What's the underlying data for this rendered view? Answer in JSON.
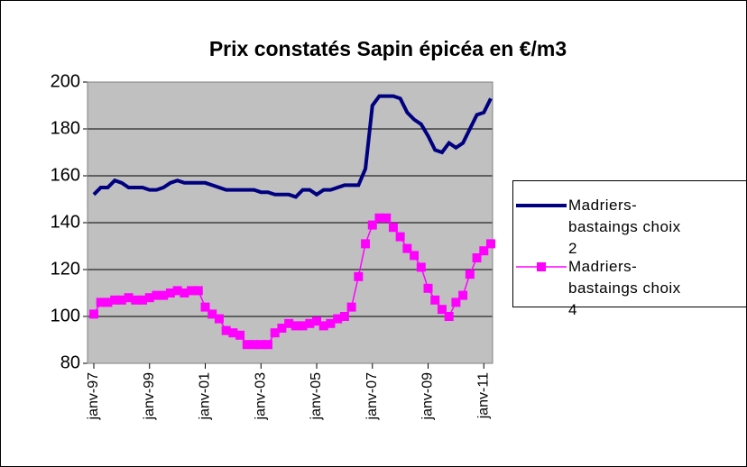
{
  "chart_data": {
    "type": "line",
    "title": "Prix constatés Sapin épicéa en €/m3",
    "categories": [
      "janv-97",
      null,
      null,
      null,
      null,
      null,
      null,
      null,
      "janv-99",
      null,
      null,
      null,
      null,
      null,
      null,
      null,
      "janv-01",
      null,
      null,
      null,
      null,
      null,
      null,
      null,
      "janv-03",
      null,
      null,
      null,
      null,
      null,
      null,
      null,
      "janv-05",
      null,
      null,
      null,
      null,
      null,
      null,
      null,
      "janv-07",
      null,
      null,
      null,
      null,
      null,
      null,
      null,
      "janv-09",
      null,
      null,
      null,
      null,
      null,
      null,
      null,
      "janv-11",
      null
    ],
    "series": [
      {
        "name": "Madriers-bastaings choix 2",
        "color": "#000080",
        "marker": "none",
        "values": [
          152,
          155,
          155,
          158,
          157,
          155,
          155,
          155,
          154,
          154,
          155,
          157,
          158,
          157,
          157,
          157,
          157,
          156,
          155,
          154,
          154,
          154,
          154,
          154,
          153,
          153,
          152,
          152,
          152,
          151,
          154,
          154,
          152,
          154,
          154,
          155,
          156,
          156,
          156,
          163,
          190,
          194,
          194,
          194,
          193,
          187,
          184,
          182,
          177,
          171,
          170,
          174,
          172,
          174,
          180,
          186,
          187,
          193
        ]
      },
      {
        "name": "Madriers-bastaings choix 4",
        "color": "#ff00ff",
        "marker": "square",
        "values": [
          101,
          106,
          106,
          107,
          107,
          108,
          107,
          107,
          108,
          109,
          109,
          110,
          111,
          110,
          111,
          111,
          104,
          101,
          99,
          94,
          93,
          92,
          88,
          88,
          88,
          88,
          93,
          95,
          97,
          96,
          96,
          97,
          98,
          96,
          97,
          99,
          100,
          104,
          117,
          131,
          139,
          142,
          142,
          138,
          134,
          129,
          126,
          121,
          112,
          107,
          103,
          100,
          106,
          109,
          118,
          125,
          128,
          131
        ]
      }
    ],
    "ylim": [
      80,
      200
    ],
    "yticks": [
      80,
      100,
      120,
      140,
      160,
      180,
      200
    ],
    "grid": true,
    "legend": "right",
    "plot_background": "#c0c0c0"
  }
}
